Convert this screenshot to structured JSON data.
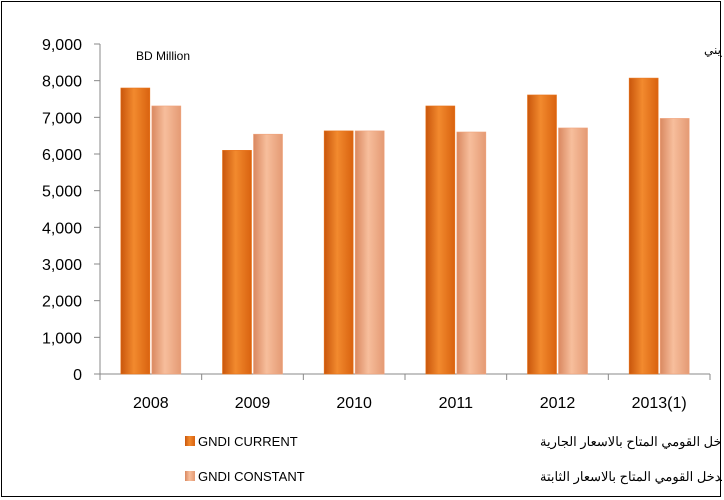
{
  "chart_data": {
    "type": "bar",
    "categories": [
      "2008",
      "2009",
      "2010",
      "2011",
      "2012",
      "2013(1)"
    ],
    "series": [
      {
        "name": "GNDI CURRENT",
        "name_ar": "اجمالي الدخل القومي المتاح بالاسعار الجارية",
        "color": "#E8731A",
        "values": [
          7800,
          6100,
          6630,
          7310,
          7610,
          8070
        ]
      },
      {
        "name": "GNDI CONSTANT",
        "name_ar": "اجمالي الدخل القومي المتاح بالاسعار الثابتة",
        "color": "#F0A27A",
        "values": [
          7310,
          6540,
          6630,
          6600,
          6710,
          6970
        ]
      }
    ],
    "ylim": [
      0,
      9000
    ],
    "yticks": [
      "0",
      "1,000",
      "2,000",
      "3,000",
      "4,000",
      "5,000",
      "6,000",
      "7,000",
      "8,000",
      "9,000"
    ],
    "unit_label_en": "BD Million",
    "unit_label_ar": "مليون دينار بحريني",
    "legend_position": "bottom",
    "grid": false
  }
}
